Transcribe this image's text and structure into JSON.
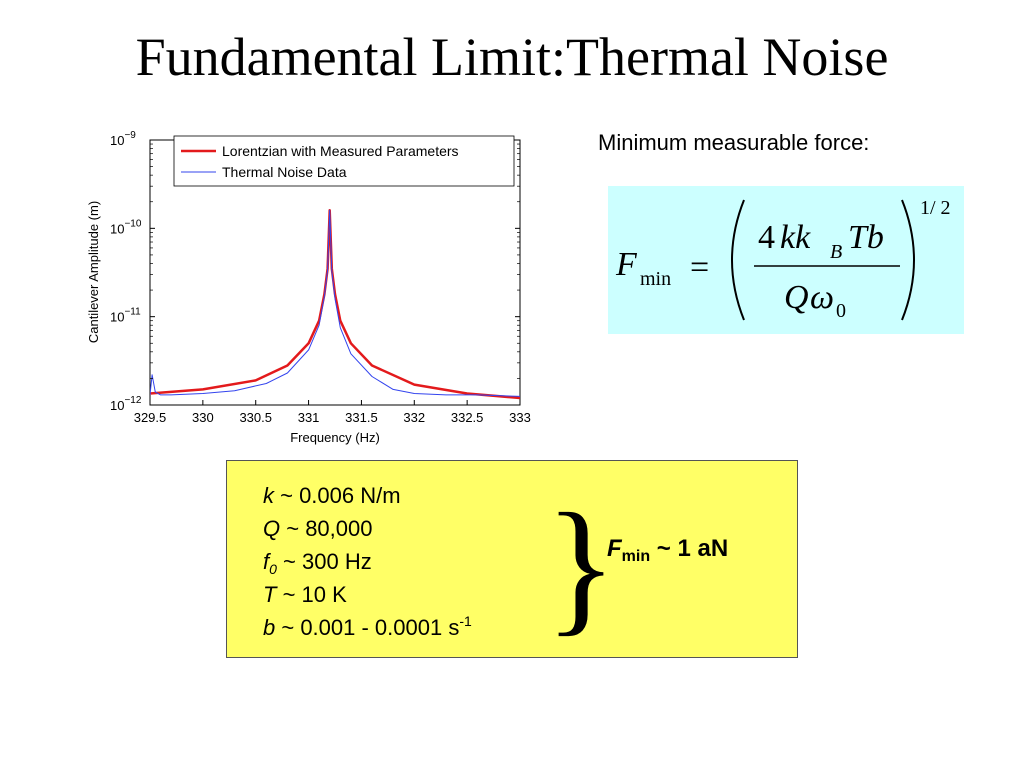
{
  "slide": {
    "title": "Fundamental Limit:Thermal Noise"
  },
  "chart_data": {
    "type": "line",
    "xlabel": "Frequency (Hz)",
    "ylabel": "Cantilever Amplitude (m)",
    "xlim": [
      329.5,
      333
    ],
    "ylim": [
      1e-12,
      1e-09
    ],
    "y_scale": "log",
    "x_ticks": [
      "329.5",
      "330",
      "330.5",
      "331",
      "331.5",
      "332",
      "332.5",
      "333"
    ],
    "y_ticks": [
      {
        "base": "10",
        "exp": "−9"
      },
      {
        "base": "10",
        "exp": "−10"
      },
      {
        "base": "10",
        "exp": "−11"
      },
      {
        "base": "10",
        "exp": "−12"
      }
    ],
    "legend_position": "top",
    "grid": false,
    "series": [
      {
        "name": "Lorentzian with Measured Parameters",
        "color": "#e31a1c",
        "x": [
          329.5,
          330.0,
          330.5,
          330.8,
          331.0,
          331.1,
          331.15,
          331.18,
          331.2,
          331.22,
          331.25,
          331.3,
          331.4,
          331.6,
          332.0,
          332.5,
          333.0
        ],
        "y": [
          1.35e-12,
          1.5e-12,
          1.9e-12,
          2.8e-12,
          5e-12,
          9e-12,
          1.8e-11,
          3.5e-11,
          1.6e-10,
          3.5e-11,
          1.8e-11,
          9e-12,
          5e-12,
          2.8e-12,
          1.7e-12,
          1.35e-12,
          1.2e-12
        ]
      },
      {
        "name": "Thermal Noise Data",
        "color": "#3344ee",
        "x": [
          329.5,
          329.52,
          329.55,
          329.6,
          329.7,
          330.0,
          330.3,
          330.6,
          330.8,
          331.0,
          331.1,
          331.15,
          331.18,
          331.2,
          331.22,
          331.25,
          331.3,
          331.4,
          331.6,
          331.8,
          332.0,
          332.3,
          332.6,
          333.0
        ],
        "y": [
          1.3e-12,
          2.2e-12,
          1.4e-12,
          1.3e-12,
          1.3e-12,
          1.35e-12,
          1.45e-12,
          1.75e-12,
          2.3e-12,
          4.2e-12,
          8e-12,
          1.7e-11,
          3.4e-11,
          1.6e-10,
          3.3e-11,
          1.6e-11,
          7.5e-12,
          3.8e-12,
          2.1e-12,
          1.5e-12,
          1.35e-12,
          1.3e-12,
          1.3e-12,
          1.25e-12
        ]
      }
    ]
  },
  "formula": {
    "label": "Minimum measurable force:",
    "lhs_var": "F",
    "lhs_sub": "min",
    "equals": "=",
    "num_4": "4",
    "num_kk": "kk",
    "num_B": "B",
    "num_Tb": "Tb",
    "den_Q": "Q",
    "den_omega": "ω",
    "den_0": "0",
    "exponent": "1/ 2"
  },
  "params": {
    "k": {
      "sym": "k",
      "rest": " ~ 0.006 N/m"
    },
    "Q": {
      "sym": "Q",
      "rest": " ~ 80,000"
    },
    "f0": {
      "sym": "f",
      "sub": "0",
      "rest": " ~ 300 Hz"
    },
    "T": {
      "sym": "T",
      "rest": " ~ 10 K"
    },
    "b": {
      "sym": "b",
      "rest": " ~ 0.001 - 0.0001 s",
      "sup": "-1"
    },
    "brace": "}",
    "result": {
      "sym": "F",
      "sub": "min",
      "rest": " ~ 1 aN"
    }
  }
}
